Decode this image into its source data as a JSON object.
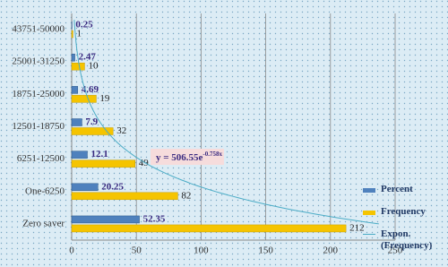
{
  "chart_data": {
    "type": "bar",
    "orientation": "horizontal",
    "categories": [
      "43751-50000",
      "25001-31250",
      "18751-25000",
      "12501-18750",
      "6251-12500",
      "One-6250",
      "Zero saver"
    ],
    "series": [
      {
        "name": "Percent",
        "color": "#4f81bd",
        "values": [
          0.25,
          2.47,
          4.69,
          7.9,
          12.1,
          20.25,
          52.35
        ]
      },
      {
        "name": "Frequency",
        "color": "#f5c400",
        "values": [
          1,
          10,
          19,
          32,
          49,
          82,
          212
        ]
      }
    ],
    "trendline": {
      "name": "Expon. (Frequency)",
      "color": "#4bacc6",
      "coefficient": 506.55,
      "exponent": -0.758,
      "label": "y = 506.55e",
      "label_exponent": "-0.758x"
    },
    "xlim": [
      0,
      250
    ],
    "xticks": [
      0,
      50,
      100,
      150,
      200,
      250
    ],
    "grid": true
  }
}
